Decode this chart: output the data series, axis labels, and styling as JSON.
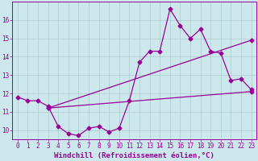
{
  "xlabel": "Windchill (Refroidissement éolien,°C)",
  "x": [
    0,
    1,
    2,
    3,
    4,
    5,
    6,
    7,
    8,
    9,
    10,
    11,
    12,
    13,
    14,
    15,
    16,
    17,
    18,
    19,
    20,
    21,
    22,
    23
  ],
  "series1": [
    11.8,
    11.6,
    11.6,
    11.3,
    10.2,
    9.8,
    9.7,
    10.1,
    10.2,
    9.9,
    10.1,
    11.6,
    13.7,
    14.3,
    14.3,
    16.6,
    15.7,
    15.0,
    15.5,
    14.3,
    14.2,
    12.7,
    12.8,
    12.2
  ],
  "series2_x": [
    3,
    23
  ],
  "series2_y": [
    11.2,
    12.1
  ],
  "series3_x": [
    3,
    23
  ],
  "series3_y": [
    11.2,
    14.9
  ],
  "line_color": "#990099",
  "bg_color": "#cce8ec",
  "grid_color": "#aacccc",
  "ylim": [
    9.5,
    17.0
  ],
  "xlim": [
    -0.5,
    23.5
  ],
  "yticks": [
    10,
    11,
    12,
    13,
    14,
    15,
    16
  ],
  "xticks": [
    0,
    1,
    2,
    3,
    4,
    5,
    6,
    7,
    8,
    9,
    10,
    11,
    12,
    13,
    14,
    15,
    16,
    17,
    18,
    19,
    20,
    21,
    22,
    23
  ],
  "marker": "D",
  "markersize": 2.5,
  "linewidth": 0.9,
  "tick_fontsize": 5.5,
  "xlabel_fontsize": 6.5
}
